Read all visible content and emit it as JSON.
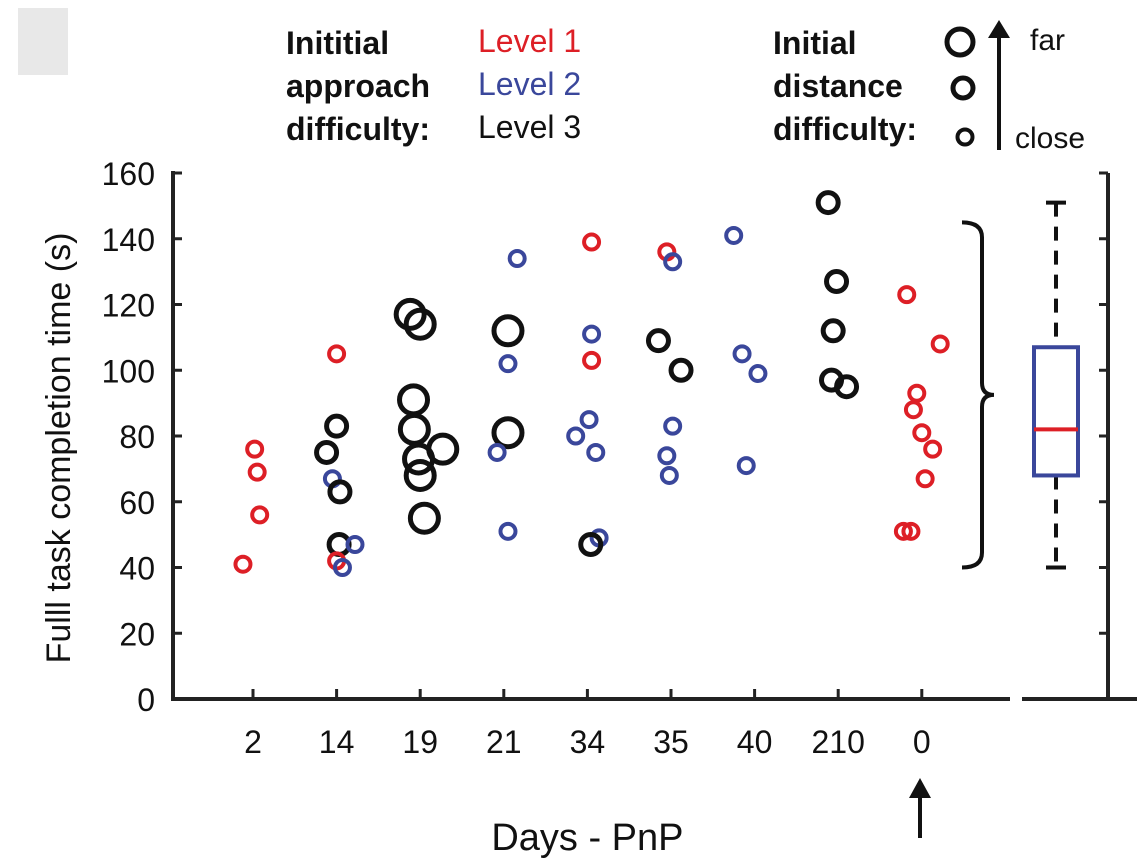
{
  "chart_data": {
    "type": "scatter",
    "xlabel": "Days - PnP",
    "ylabel": "Fulll task completion time (s)",
    "ylim": [
      0,
      160
    ],
    "yticks": [
      0,
      20,
      40,
      60,
      80,
      100,
      120,
      140,
      160
    ],
    "categories": [
      "2",
      "14",
      "19",
      "21",
      "34",
      "35",
      "40",
      "210",
      "0"
    ],
    "legend_approach": {
      "title_lines": [
        "Inititial",
        "approach",
        "difficulty:"
      ],
      "levels": [
        {
          "label": "Level 1",
          "color": "#dd1f26"
        },
        {
          "label": "Level 2",
          "color": "#3a479b"
        },
        {
          "label": "Level 3",
          "color": "#111111"
        }
      ]
    },
    "legend_distance": {
      "title_lines": [
        "Initial",
        "distance",
        "difficulty:"
      ],
      "far_label": "far",
      "close_label": "close",
      "sizes": [
        "far",
        "medium",
        "close"
      ]
    },
    "points": [
      {
        "cat": "2",
        "dx": -0.12,
        "y": 41,
        "level": 1,
        "size": "close"
      },
      {
        "cat": "2",
        "dx": 0.08,
        "y": 56,
        "level": 1,
        "size": "close"
      },
      {
        "cat": "2",
        "dx": 0.05,
        "y": 69,
        "level": 1,
        "size": "close"
      },
      {
        "cat": "2",
        "dx": 0.02,
        "y": 76,
        "level": 1,
        "size": "close"
      },
      {
        "cat": "14",
        "dx": 0.0,
        "y": 105,
        "level": 1,
        "size": "close"
      },
      {
        "cat": "14",
        "dx": 0.0,
        "y": 83,
        "level": 3,
        "size": "medium"
      },
      {
        "cat": "14",
        "dx": -0.12,
        "y": 75,
        "level": 3,
        "size": "medium"
      },
      {
        "cat": "14",
        "dx": -0.05,
        "y": 67,
        "level": 2,
        "size": "close"
      },
      {
        "cat": "14",
        "dx": 0.04,
        "y": 63,
        "level": 3,
        "size": "medium"
      },
      {
        "cat": "14",
        "dx": 0.03,
        "y": 47,
        "level": 3,
        "size": "medium"
      },
      {
        "cat": "14",
        "dx": 0.22,
        "y": 47,
        "level": 2,
        "size": "close"
      },
      {
        "cat": "14",
        "dx": 0.0,
        "y": 42,
        "level": 1,
        "size": "close"
      },
      {
        "cat": "14",
        "dx": 0.07,
        "y": 40,
        "level": 2,
        "size": "close"
      },
      {
        "cat": "19",
        "dx": -0.12,
        "y": 117,
        "level": 3,
        "size": "far"
      },
      {
        "cat": "19",
        "dx": 0.0,
        "y": 114,
        "level": 3,
        "size": "far"
      },
      {
        "cat": "19",
        "dx": -0.08,
        "y": 91,
        "level": 3,
        "size": "far"
      },
      {
        "cat": "19",
        "dx": -0.07,
        "y": 82,
        "level": 3,
        "size": "far"
      },
      {
        "cat": "19",
        "dx": 0.27,
        "y": 76,
        "level": 3,
        "size": "far"
      },
      {
        "cat": "19",
        "dx": -0.02,
        "y": 73,
        "level": 3,
        "size": "far"
      },
      {
        "cat": "19",
        "dx": 0.0,
        "y": 68,
        "level": 3,
        "size": "far"
      },
      {
        "cat": "19",
        "dx": 0.05,
        "y": 55,
        "level": 3,
        "size": "far"
      },
      {
        "cat": "21",
        "dx": 0.16,
        "y": 134,
        "level": 2,
        "size": "close"
      },
      {
        "cat": "21",
        "dx": 0.05,
        "y": 112,
        "level": 3,
        "size": "far"
      },
      {
        "cat": "21",
        "dx": 0.05,
        "y": 102,
        "level": 2,
        "size": "close"
      },
      {
        "cat": "21",
        "dx": 0.05,
        "y": 81,
        "level": 3,
        "size": "far"
      },
      {
        "cat": "21",
        "dx": -0.08,
        "y": 75,
        "level": 2,
        "size": "close"
      },
      {
        "cat": "21",
        "dx": 0.05,
        "y": 51,
        "level": 2,
        "size": "close"
      },
      {
        "cat": "34",
        "dx": 0.05,
        "y": 139,
        "level": 1,
        "size": "close"
      },
      {
        "cat": "34",
        "dx": 0.05,
        "y": 111,
        "level": 2,
        "size": "close"
      },
      {
        "cat": "34",
        "dx": 0.05,
        "y": 103,
        "level": 1,
        "size": "close"
      },
      {
        "cat": "34",
        "dx": 0.02,
        "y": 85,
        "level": 2,
        "size": "close"
      },
      {
        "cat": "34",
        "dx": -0.14,
        "y": 80,
        "level": 2,
        "size": "close"
      },
      {
        "cat": "34",
        "dx": 0.1,
        "y": 75,
        "level": 2,
        "size": "close"
      },
      {
        "cat": "34",
        "dx": 0.14,
        "y": 49,
        "level": 2,
        "size": "close"
      },
      {
        "cat": "34",
        "dx": 0.04,
        "y": 47,
        "level": 3,
        "size": "medium"
      },
      {
        "cat": "35",
        "dx": -0.05,
        "y": 136,
        "level": 1,
        "size": "close"
      },
      {
        "cat": "35",
        "dx": 0.02,
        "y": 133,
        "level": 2,
        "size": "close"
      },
      {
        "cat": "35",
        "dx": -0.15,
        "y": 109,
        "level": 3,
        "size": "medium"
      },
      {
        "cat": "35",
        "dx": 0.12,
        "y": 100,
        "level": 3,
        "size": "medium"
      },
      {
        "cat": "35",
        "dx": 0.02,
        "y": 83,
        "level": 2,
        "size": "close"
      },
      {
        "cat": "35",
        "dx": -0.05,
        "y": 74,
        "level": 2,
        "size": "close"
      },
      {
        "cat": "35",
        "dx": -0.02,
        "y": 68,
        "level": 2,
        "size": "close"
      },
      {
        "cat": "40",
        "dx": -0.25,
        "y": 141,
        "level": 2,
        "size": "close"
      },
      {
        "cat": "40",
        "dx": -0.15,
        "y": 105,
        "level": 2,
        "size": "close"
      },
      {
        "cat": "40",
        "dx": 0.04,
        "y": 99,
        "level": 2,
        "size": "close"
      },
      {
        "cat": "40",
        "dx": -0.1,
        "y": 71,
        "level": 2,
        "size": "close"
      },
      {
        "cat": "210",
        "dx": -0.12,
        "y": 151,
        "level": 3,
        "size": "medium"
      },
      {
        "cat": "210",
        "dx": -0.02,
        "y": 127,
        "level": 3,
        "size": "medium"
      },
      {
        "cat": "210",
        "dx": -0.06,
        "y": 112,
        "level": 3,
        "size": "medium"
      },
      {
        "cat": "210",
        "dx": -0.08,
        "y": 97,
        "level": 3,
        "size": "medium"
      },
      {
        "cat": "210",
        "dx": 0.1,
        "y": 95,
        "level": 3,
        "size": "medium"
      },
      {
        "cat": "0",
        "dx": -0.18,
        "y": 123,
        "level": 1,
        "size": "close"
      },
      {
        "cat": "0",
        "dx": 0.22,
        "y": 108,
        "level": 1,
        "size": "close"
      },
      {
        "cat": "0",
        "dx": -0.06,
        "y": 93,
        "level": 1,
        "size": "close"
      },
      {
        "cat": "0",
        "dx": -0.1,
        "y": 88,
        "level": 1,
        "size": "close"
      },
      {
        "cat": "0",
        "dx": 0.0,
        "y": 81,
        "level": 1,
        "size": "close"
      },
      {
        "cat": "0",
        "dx": 0.13,
        "y": 76,
        "level": 1,
        "size": "close"
      },
      {
        "cat": "0",
        "dx": 0.04,
        "y": 67,
        "level": 1,
        "size": "close"
      },
      {
        "cat": "0",
        "dx": -0.22,
        "y": 51,
        "level": 1,
        "size": "close"
      },
      {
        "cat": "0",
        "dx": -0.13,
        "y": 51,
        "level": 1,
        "size": "close"
      }
    ],
    "boxplot": {
      "whisker_low": 40,
      "q1": 68,
      "median": 82,
      "q3": 107,
      "whisker_high": 151,
      "box_color": "#3a479b",
      "median_color": "#dd1f26"
    },
    "annotation_arrow_under": "0"
  }
}
